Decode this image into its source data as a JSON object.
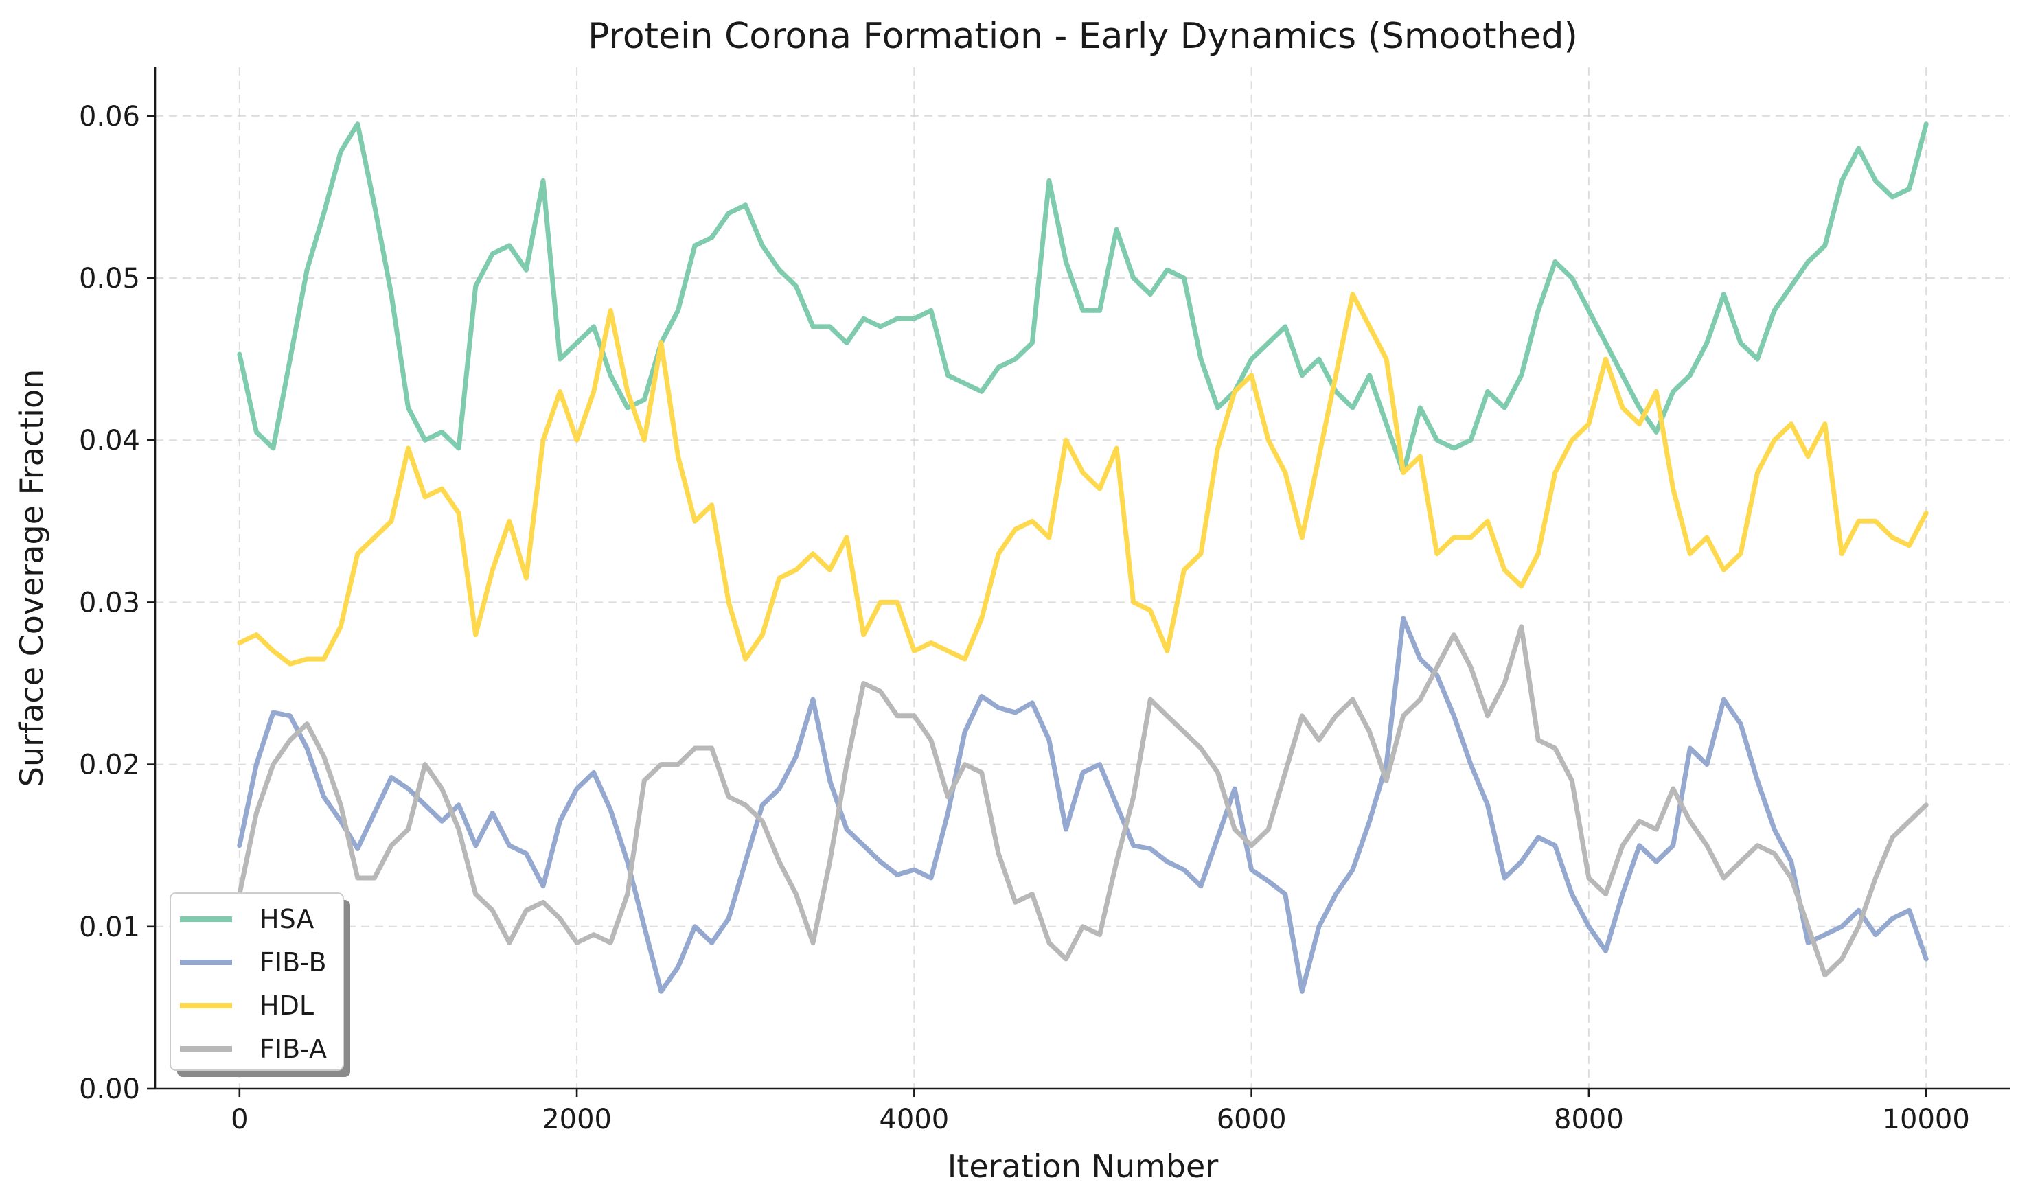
{
  "chart_data": {
    "type": "line",
    "title": "Protein Corona Formation - Early Dynamics (Smoothed)",
    "xlabel": "Iteration Number",
    "ylabel": "Surface Coverage Fraction",
    "xlim": [
      -500,
      10500
    ],
    "ylim": [
      0.0,
      0.063
    ],
    "xticks": [
      0,
      2000,
      4000,
      6000,
      8000,
      10000
    ],
    "xtick_labels": [
      "0",
      "2000",
      "4000",
      "6000",
      "8000",
      "10000"
    ],
    "yticks": [
      0.0,
      0.01,
      0.02,
      0.03,
      0.04,
      0.05,
      0.06
    ],
    "ytick_labels": [
      "0.00",
      "0.01",
      "0.02",
      "0.03",
      "0.04",
      "0.05",
      "0.06"
    ],
    "grid": true,
    "legend_position": "lower-left",
    "x": [
      0,
      100,
      200,
      300,
      400,
      500,
      600,
      700,
      800,
      900,
      1000,
      1100,
      1200,
      1300,
      1400,
      1500,
      1600,
      1700,
      1800,
      1900,
      2000,
      2100,
      2200,
      2300,
      2400,
      2500,
      2600,
      2700,
      2800,
      2900,
      3000,
      3100,
      3200,
      3300,
      3400,
      3500,
      3600,
      3700,
      3800,
      3900,
      4000,
      4100,
      4200,
      4300,
      4400,
      4500,
      4600,
      4700,
      4800,
      4900,
      5000,
      5100,
      5200,
      5300,
      5400,
      5500,
      5600,
      5700,
      5800,
      5900,
      6000,
      6100,
      6200,
      6300,
      6400,
      6500,
      6600,
      6700,
      6800,
      6900,
      7000,
      7100,
      7200,
      7300,
      7400,
      7500,
      7600,
      7700,
      7800,
      7900,
      8000,
      8100,
      8200,
      8300,
      8400,
      8500,
      8600,
      8700,
      8800,
      8900,
      9000,
      9100,
      9200,
      9300,
      9400,
      9500,
      9600,
      9700,
      9800,
      9900,
      10000
    ],
    "series": [
      {
        "name": "HSA",
        "color": "#7fcbae",
        "values": [
          0.0453,
          0.0405,
          0.0395,
          0.045,
          0.0505,
          0.054,
          0.0578,
          0.0595,
          0.0545,
          0.049,
          0.042,
          0.04,
          0.0405,
          0.0395,
          0.0495,
          0.0515,
          0.052,
          0.0505,
          0.056,
          0.045,
          0.046,
          0.047,
          0.044,
          0.042,
          0.0425,
          0.046,
          0.048,
          0.052,
          0.0525,
          0.054,
          0.0545,
          0.052,
          0.0505,
          0.0495,
          0.047,
          0.047,
          0.046,
          0.0475,
          0.047,
          0.0475,
          0.0475,
          0.048,
          0.044,
          0.0435,
          0.043,
          0.0445,
          0.045,
          0.046,
          0.056,
          0.051,
          0.048,
          0.048,
          0.053,
          0.05,
          0.049,
          0.0505,
          0.05,
          0.045,
          0.042,
          0.043,
          0.045,
          0.046,
          0.047,
          0.044,
          0.045,
          0.043,
          0.042,
          0.044,
          0.041,
          0.038,
          0.042,
          0.04,
          0.0395,
          0.04,
          0.043,
          0.042,
          0.044,
          0.048,
          0.051,
          0.05,
          0.048,
          0.046,
          0.044,
          0.042,
          0.0405,
          0.043,
          0.044,
          0.046,
          0.049,
          0.046,
          0.045,
          0.048,
          0.0495,
          0.051,
          0.052,
          0.056,
          0.058,
          0.056,
          0.055,
          0.0555,
          0.0595
        ]
      },
      {
        "name": "FIB-B",
        "color": "#95a9d0",
        "values": [
          0.015,
          0.02,
          0.0232,
          0.023,
          0.021,
          0.018,
          0.0165,
          0.0148,
          0.017,
          0.0192,
          0.0185,
          0.0175,
          0.0165,
          0.0175,
          0.015,
          0.017,
          0.015,
          0.0145,
          0.0125,
          0.0165,
          0.0185,
          0.0195,
          0.0172,
          0.014,
          0.01,
          0.006,
          0.0075,
          0.01,
          0.009,
          0.0105,
          0.014,
          0.0175,
          0.0185,
          0.0205,
          0.024,
          0.019,
          0.016,
          0.015,
          0.014,
          0.0132,
          0.0135,
          0.013,
          0.017,
          0.022,
          0.0242,
          0.0235,
          0.0232,
          0.0238,
          0.0215,
          0.016,
          0.0195,
          0.02,
          0.0175,
          0.015,
          0.0148,
          0.014,
          0.0135,
          0.0125,
          0.0155,
          0.0185,
          0.0135,
          0.0128,
          0.012,
          0.006,
          0.01,
          0.012,
          0.0135,
          0.0165,
          0.02,
          0.029,
          0.0265,
          0.0255,
          0.023,
          0.02,
          0.0175,
          0.013,
          0.014,
          0.0155,
          0.015,
          0.012,
          0.01,
          0.0085,
          0.012,
          0.015,
          0.014,
          0.015,
          0.021,
          0.02,
          0.024,
          0.0225,
          0.019,
          0.016,
          0.014,
          0.009,
          0.0095,
          0.01,
          0.011,
          0.0095,
          0.0105,
          0.011,
          0.008
        ]
      },
      {
        "name": "HDL",
        "color": "#ffd94d",
        "values": [
          0.0275,
          0.028,
          0.027,
          0.0262,
          0.0265,
          0.0265,
          0.0285,
          0.033,
          0.034,
          0.035,
          0.0395,
          0.0365,
          0.037,
          0.0355,
          0.028,
          0.032,
          0.035,
          0.0315,
          0.04,
          0.043,
          0.04,
          0.043,
          0.048,
          0.043,
          0.04,
          0.046,
          0.039,
          0.035,
          0.036,
          0.03,
          0.0265,
          0.028,
          0.0315,
          0.032,
          0.033,
          0.032,
          0.034,
          0.028,
          0.03,
          0.03,
          0.027,
          0.0275,
          0.027,
          0.0265,
          0.029,
          0.033,
          0.0345,
          0.035,
          0.034,
          0.04,
          0.038,
          0.037,
          0.0395,
          0.03,
          0.0295,
          0.027,
          0.032,
          0.033,
          0.0395,
          0.043,
          0.044,
          0.04,
          0.038,
          0.034,
          0.039,
          0.044,
          0.049,
          0.047,
          0.045,
          0.038,
          0.039,
          0.033,
          0.034,
          0.034,
          0.035,
          0.032,
          0.031,
          0.033,
          0.038,
          0.04,
          0.041,
          0.045,
          0.042,
          0.041,
          0.043,
          0.037,
          0.033,
          0.034,
          0.032,
          0.033,
          0.038,
          0.04,
          0.041,
          0.039,
          0.041,
          0.033,
          0.035,
          0.035,
          0.034,
          0.0335,
          0.0355
        ]
      },
      {
        "name": "FIB-A",
        "color": "#b8b8b8",
        "values": [
          0.012,
          0.017,
          0.02,
          0.0215,
          0.0225,
          0.0205,
          0.0175,
          0.013,
          0.013,
          0.015,
          0.016,
          0.02,
          0.0185,
          0.016,
          0.012,
          0.011,
          0.009,
          0.011,
          0.0115,
          0.0105,
          0.009,
          0.0095,
          0.009,
          0.012,
          0.019,
          0.02,
          0.02,
          0.021,
          0.021,
          0.018,
          0.0175,
          0.0165,
          0.014,
          0.012,
          0.009,
          0.014,
          0.02,
          0.025,
          0.0245,
          0.023,
          0.023,
          0.0215,
          0.018,
          0.02,
          0.0195,
          0.0145,
          0.0115,
          0.012,
          0.009,
          0.008,
          0.01,
          0.0095,
          0.014,
          0.018,
          0.024,
          0.023,
          0.022,
          0.021,
          0.0195,
          0.016,
          0.015,
          0.016,
          0.0195,
          0.023,
          0.0215,
          0.023,
          0.024,
          0.022,
          0.019,
          0.023,
          0.024,
          0.026,
          0.028,
          0.026,
          0.023,
          0.025,
          0.0285,
          0.0215,
          0.021,
          0.019,
          0.013,
          0.012,
          0.015,
          0.0165,
          0.016,
          0.0185,
          0.0165,
          0.015,
          0.013,
          0.014,
          0.015,
          0.0145,
          0.013,
          0.01,
          0.007,
          0.008,
          0.01,
          0.013,
          0.0155,
          0.0165,
          0.0175
        ]
      }
    ]
  }
}
